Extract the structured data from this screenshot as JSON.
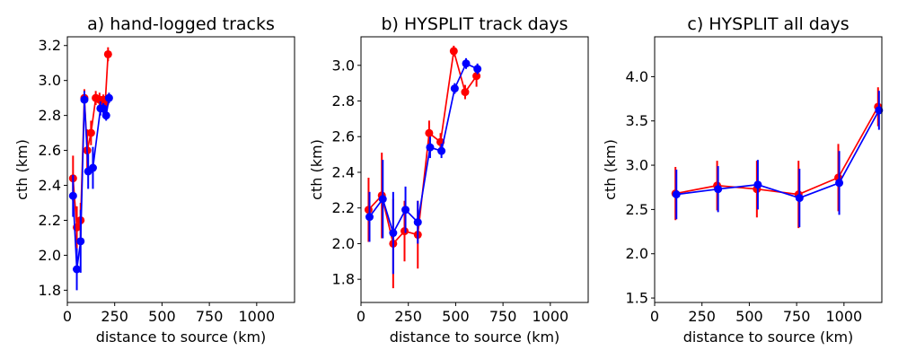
{
  "colors": {
    "series_a": "#ff0000",
    "series_b": "#0000ff"
  },
  "chart_data": [
    {
      "type": "line",
      "title": "a) hand-logged tracks",
      "xlabel": "distance to source (km)",
      "ylabel": "cth (km)",
      "xlim": [
        0,
        1200
      ],
      "ylim": [
        1.73,
        3.25
      ],
      "xticks": [
        0,
        250,
        500,
        750,
        1000
      ],
      "xtick_labels": [
        "0",
        "250",
        "500",
        "750",
        "1000"
      ],
      "yticks": [
        1.8,
        2.0,
        2.2,
        2.4,
        2.6,
        2.8,
        3.0,
        3.2
      ],
      "ytick_labels": [
        "1.8",
        "2.0",
        "2.2",
        "2.4",
        "2.6",
        "2.8",
        "3.0",
        "3.2"
      ],
      "series": [
        {
          "name": "red",
          "color": "#ff0000",
          "x": [
            30,
            50,
            70,
            90,
            105,
            125,
            150,
            170,
            190,
            200,
            215
          ],
          "y": [
            2.44,
            2.16,
            2.2,
            2.9,
            2.6,
            2.7,
            2.9,
            2.89,
            2.89,
            2.87,
            3.15
          ],
          "err": [
            0.13,
            0.12,
            0.1,
            0.05,
            0.12,
            0.07,
            0.04,
            0.04,
            0.03,
            0.03,
            0.04
          ]
        },
        {
          "name": "blue",
          "color": "#0000ff",
          "x": [
            30,
            50,
            70,
            90,
            110,
            135,
            175,
            190,
            205,
            220
          ],
          "y": [
            2.34,
            1.92,
            2.08,
            2.89,
            2.48,
            2.5,
            2.84,
            2.84,
            2.8,
            2.9
          ],
          "err": [
            0.12,
            0.12,
            0.18,
            0.05,
            0.1,
            0.12,
            0.04,
            0.03,
            0.03,
            0.03
          ]
        }
      ]
    },
    {
      "type": "line",
      "title": "b) HYSPLIT track days",
      "xlabel": "distance to source (km)",
      "ylabel": "cth (km)",
      "xlim": [
        0,
        1200
      ],
      "ylim": [
        1.67,
        3.16
      ],
      "xticks": [
        0,
        250,
        500,
        750,
        1000
      ],
      "xtick_labels": [
        "0",
        "250",
        "500",
        "750",
        "1000"
      ],
      "yticks": [
        1.8,
        2.0,
        2.2,
        2.4,
        2.6,
        2.8,
        3.0
      ],
      "ytick_labels": [
        "1.8",
        "2.0",
        "2.2",
        "2.4",
        "2.6",
        "2.8",
        "3.0"
      ],
      "series": [
        {
          "name": "red",
          "color": "#ff0000",
          "x": [
            40,
            110,
            170,
            230,
            300,
            360,
            420,
            490,
            550,
            610
          ],
          "y": [
            2.19,
            2.27,
            2.0,
            2.07,
            2.05,
            2.62,
            2.57,
            3.08,
            2.85,
            2.94
          ],
          "err": [
            0.18,
            0.24,
            0.25,
            0.17,
            0.19,
            0.07,
            0.05,
            0.03,
            0.04,
            0.06
          ]
        },
        {
          "name": "blue",
          "color": "#0000ff",
          "x": [
            45,
            115,
            170,
            235,
            300,
            365,
            425,
            495,
            555,
            615
          ],
          "y": [
            2.15,
            2.25,
            2.06,
            2.19,
            2.12,
            2.54,
            2.52,
            2.87,
            3.01,
            2.98
          ],
          "err": [
            0.14,
            0.22,
            0.23,
            0.13,
            0.12,
            0.06,
            0.04,
            0.03,
            0.03,
            0.03
          ]
        }
      ]
    },
    {
      "type": "line",
      "title": "c) HYSPLIT all days",
      "xlabel": "distance to source (km)",
      "ylabel": "cth (km)",
      "xlim": [
        0,
        1200
      ],
      "ylim": [
        1.45,
        4.45
      ],
      "xticks": [
        0,
        250,
        500,
        750,
        1000
      ],
      "xtick_labels": [
        "0",
        "250",
        "500",
        "750",
        "1000"
      ],
      "yticks": [
        1.5,
        2.0,
        2.5,
        3.0,
        3.5,
        4.0
      ],
      "ytick_labels": [
        "1.5",
        "2.0",
        "2.5",
        "3.0",
        "3.5",
        "4.0"
      ],
      "series": [
        {
          "name": "red",
          "color": "#ff0000",
          "x": [
            110,
            330,
            540,
            760,
            970,
            1180
          ],
          "y": [
            2.68,
            2.77,
            2.73,
            2.67,
            2.86,
            3.66
          ],
          "err": [
            0.3,
            0.28,
            0.32,
            0.38,
            0.38,
            0.22
          ]
        },
        {
          "name": "blue",
          "color": "#0000ff",
          "x": [
            115,
            335,
            545,
            765,
            975,
            1185
          ],
          "y": [
            2.67,
            2.73,
            2.78,
            2.63,
            2.8,
            3.62
          ],
          "err": [
            0.28,
            0.26,
            0.28,
            0.33,
            0.36,
            0.22
          ]
        }
      ]
    }
  ]
}
